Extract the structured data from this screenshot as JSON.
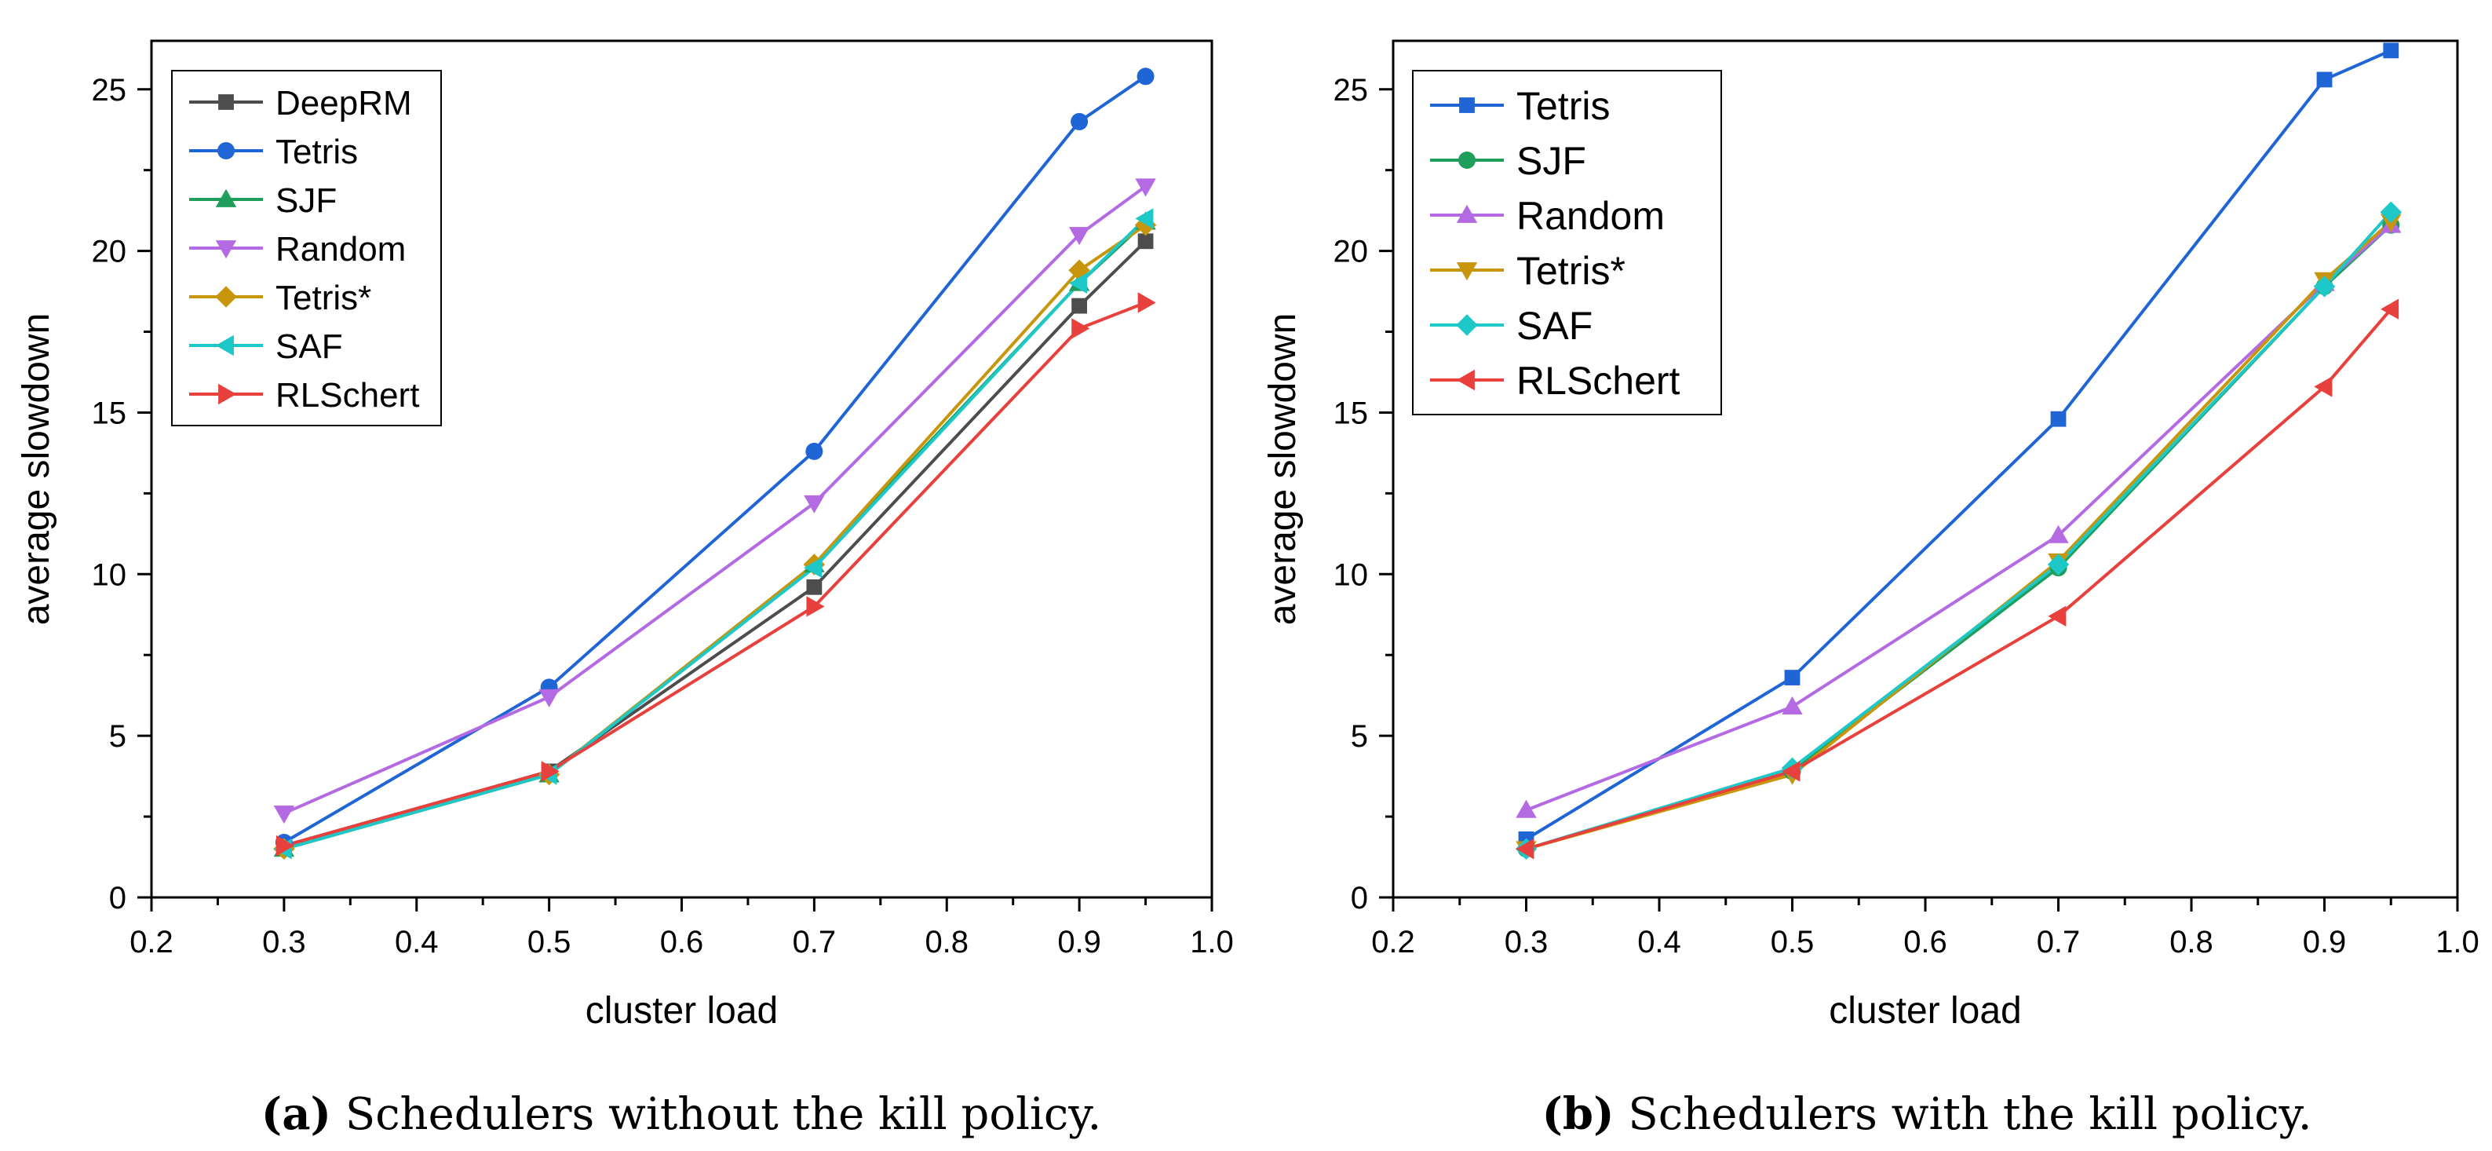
{
  "chart_data": [
    {
      "type": "line",
      "caption_label": "(a)",
      "caption_text": "Schedulers without the kill policy.",
      "xlabel": "cluster load",
      "ylabel": "average slowdown",
      "xlim": [
        0.2,
        1.0
      ],
      "ylim": [
        0,
        26.5
      ],
      "x_ticks": [
        "0.2",
        "0.3",
        "0.4",
        "0.5",
        "0.6",
        "0.7",
        "0.8",
        "0.9",
        "1.0"
      ],
      "y_ticks": [
        "0",
        "5",
        "10",
        "15",
        "20",
        "25"
      ],
      "legend_position": "top-left",
      "x": [
        0.3,
        0.5,
        0.7,
        0.9,
        0.95
      ],
      "series": [
        {
          "name": "DeepRM",
          "color": "#4d4d4d",
          "marker": "square",
          "values": [
            1.6,
            3.9,
            9.6,
            18.3,
            20.3
          ]
        },
        {
          "name": "Tetris",
          "color": "#1f65d6",
          "marker": "circle",
          "values": [
            1.7,
            6.5,
            13.8,
            24.0,
            25.4
          ]
        },
        {
          "name": "SJF",
          "color": "#1e9e5a",
          "marker": "triangle-up",
          "values": [
            1.5,
            3.8,
            10.3,
            19.0,
            20.9
          ]
        },
        {
          "name": "Random",
          "color": "#b36ae2",
          "marker": "triangle-down",
          "values": [
            2.6,
            6.2,
            12.2,
            20.5,
            22.0
          ]
        },
        {
          "name": "Tetris*",
          "color": "#c8960c",
          "marker": "diamond",
          "values": [
            1.5,
            3.8,
            10.3,
            19.4,
            20.8
          ]
        },
        {
          "name": "SAF",
          "color": "#1ec8c8",
          "marker": "triangle-left",
          "values": [
            1.5,
            3.8,
            10.2,
            19.0,
            21.0
          ]
        },
        {
          "name": "RLSchert",
          "color": "#e8403c",
          "marker": "triangle-right",
          "values": [
            1.6,
            3.9,
            9.0,
            17.6,
            18.4
          ]
        }
      ]
    },
    {
      "type": "line",
      "caption_label": "(b)",
      "caption_text": "Schedulers with the kill policy.",
      "xlabel": "cluster load",
      "ylabel": "average slowdown",
      "xlim": [
        0.2,
        1.0
      ],
      "ylim": [
        0,
        26.5
      ],
      "x_ticks": [
        "0.2",
        "0.3",
        "0.4",
        "0.5",
        "0.6",
        "0.7",
        "0.8",
        "0.9",
        "1.0"
      ],
      "y_ticks": [
        "0",
        "5",
        "10",
        "15",
        "20",
        "25"
      ],
      "legend_position": "top-left",
      "x": [
        0.3,
        0.5,
        0.7,
        0.9,
        0.95
      ],
      "series": [
        {
          "name": "Tetris",
          "color": "#1f65d6",
          "marker": "square",
          "values": [
            1.8,
            6.8,
            14.8,
            25.3,
            26.2
          ]
        },
        {
          "name": "SJF",
          "color": "#1e9e5a",
          "marker": "circle",
          "values": [
            1.5,
            3.9,
            10.2,
            18.9,
            20.8
          ]
        },
        {
          "name": "Random",
          "color": "#b36ae2",
          "marker": "triangle-up",
          "values": [
            2.7,
            5.9,
            11.2,
            19.0,
            20.8
          ]
        },
        {
          "name": "Tetris*",
          "color": "#c8960c",
          "marker": "triangle-down",
          "values": [
            1.5,
            3.8,
            10.4,
            19.1,
            20.9
          ]
        },
        {
          "name": "SAF",
          "color": "#1ec8c8",
          "marker": "diamond",
          "values": [
            1.5,
            4.0,
            10.3,
            18.9,
            21.2
          ]
        },
        {
          "name": "RLSchert",
          "color": "#e8403c",
          "marker": "triangle-left",
          "values": [
            1.5,
            3.9,
            8.7,
            15.8,
            18.2
          ]
        }
      ]
    }
  ]
}
